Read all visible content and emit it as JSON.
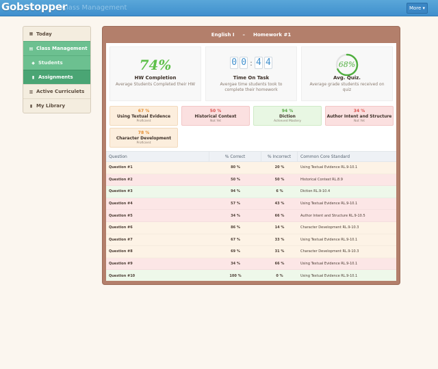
{
  "app": {
    "name": "Gobstopper",
    "section": "Class Management",
    "more_label": "More ▾"
  },
  "sidebar": {
    "items": [
      {
        "label": "Today",
        "icon": "calendar-icon"
      },
      {
        "label": "Class Management",
        "icon": "classroom-icon"
      },
      {
        "label": "Students",
        "icon": "graduation-cap-icon"
      },
      {
        "label": "Assignments",
        "icon": "clipboard-icon"
      },
      {
        "label": "Active Curriculets",
        "icon": "book-open-icon"
      },
      {
        "label": "My Library",
        "icon": "book-icon"
      }
    ]
  },
  "panel": {
    "class_name": "English I",
    "separator": "–",
    "assignment": "Homework #1"
  },
  "stats": {
    "hw": {
      "value": "74%",
      "title": "HW Completion",
      "subtitle": "Average Students Completed their HW"
    },
    "time": {
      "digits": [
        "0",
        "0",
        "4",
        "4"
      ],
      "title": "Time On Task",
      "subtitle": "Avergae time students took to complete their homework"
    },
    "quiz": {
      "value": "68%",
      "fraction": 0.68,
      "title": "Avg. Quiz.",
      "subtitle": "Average grade students received on quiz"
    }
  },
  "standards": [
    {
      "pct": "67 %",
      "name": "Using Textual Evidence",
      "level": "Proficient",
      "color": "orange"
    },
    {
      "pct": "50 %",
      "name": "Historical Context",
      "level": "Not Yet",
      "color": "red"
    },
    {
      "pct": "94 %",
      "name": "Diction",
      "level": "Achieved Mastery",
      "color": "green"
    },
    {
      "pct": "34 %",
      "name": "Author Intent and Structure",
      "level": "Not Yet",
      "color": "red"
    },
    {
      "pct": "78 %",
      "name": "Character Development",
      "level": "Proficient",
      "color": "orange"
    }
  ],
  "table": {
    "headers": [
      "Question",
      "% Correct",
      "% Incorrect",
      "Common Core Standard"
    ],
    "rows": [
      {
        "q": "Question #1",
        "correct": "80 %",
        "incorrect": "20 %",
        "standard": "Using Textual Evidence RL.9-10.1",
        "color": "orange"
      },
      {
        "q": "Question #2",
        "correct": "50 %",
        "incorrect": "50 %",
        "standard": "Historical Context RL.8.9",
        "color": "red"
      },
      {
        "q": "Question #3",
        "correct": "94 %",
        "incorrect": "6 %",
        "standard": "Diction RL.9-10.4",
        "color": "green"
      },
      {
        "q": "Question #4",
        "correct": "57 %",
        "incorrect": "43 %",
        "standard": "Using Textual Evidence RL.9-10.1",
        "color": "red"
      },
      {
        "q": "Question #5",
        "correct": "34 %",
        "incorrect": "66 %",
        "standard": "Author Intent and Structure RL.9-10.5",
        "color": "red"
      },
      {
        "q": "Question #6",
        "correct": "86 %",
        "incorrect": "14 %",
        "standard": "Character Development RL.9-10.3",
        "color": "orange"
      },
      {
        "q": "Question #7",
        "correct": "67 %",
        "incorrect": "33 %",
        "standard": "Using Textual Evidence RL.9-10.1",
        "color": "orange"
      },
      {
        "q": "Question #8",
        "correct": "69 %",
        "incorrect": "31 %",
        "standard": "Character Development RL.9-10.3",
        "color": "orange"
      },
      {
        "q": "Question #9",
        "correct": "34 %",
        "incorrect": "66 %",
        "standard": "Using Textual Evidence RL.9-10.1",
        "color": "red"
      },
      {
        "q": "Question #10",
        "correct": "100 %",
        "incorrect": "0 %",
        "standard": "Using Textual Evidence RL.9-10.1",
        "color": "green"
      }
    ]
  },
  "colors": {
    "brand_blue": "#3f8fcd",
    "green": "#6cc090",
    "panel_brown": "#b37f6b"
  }
}
